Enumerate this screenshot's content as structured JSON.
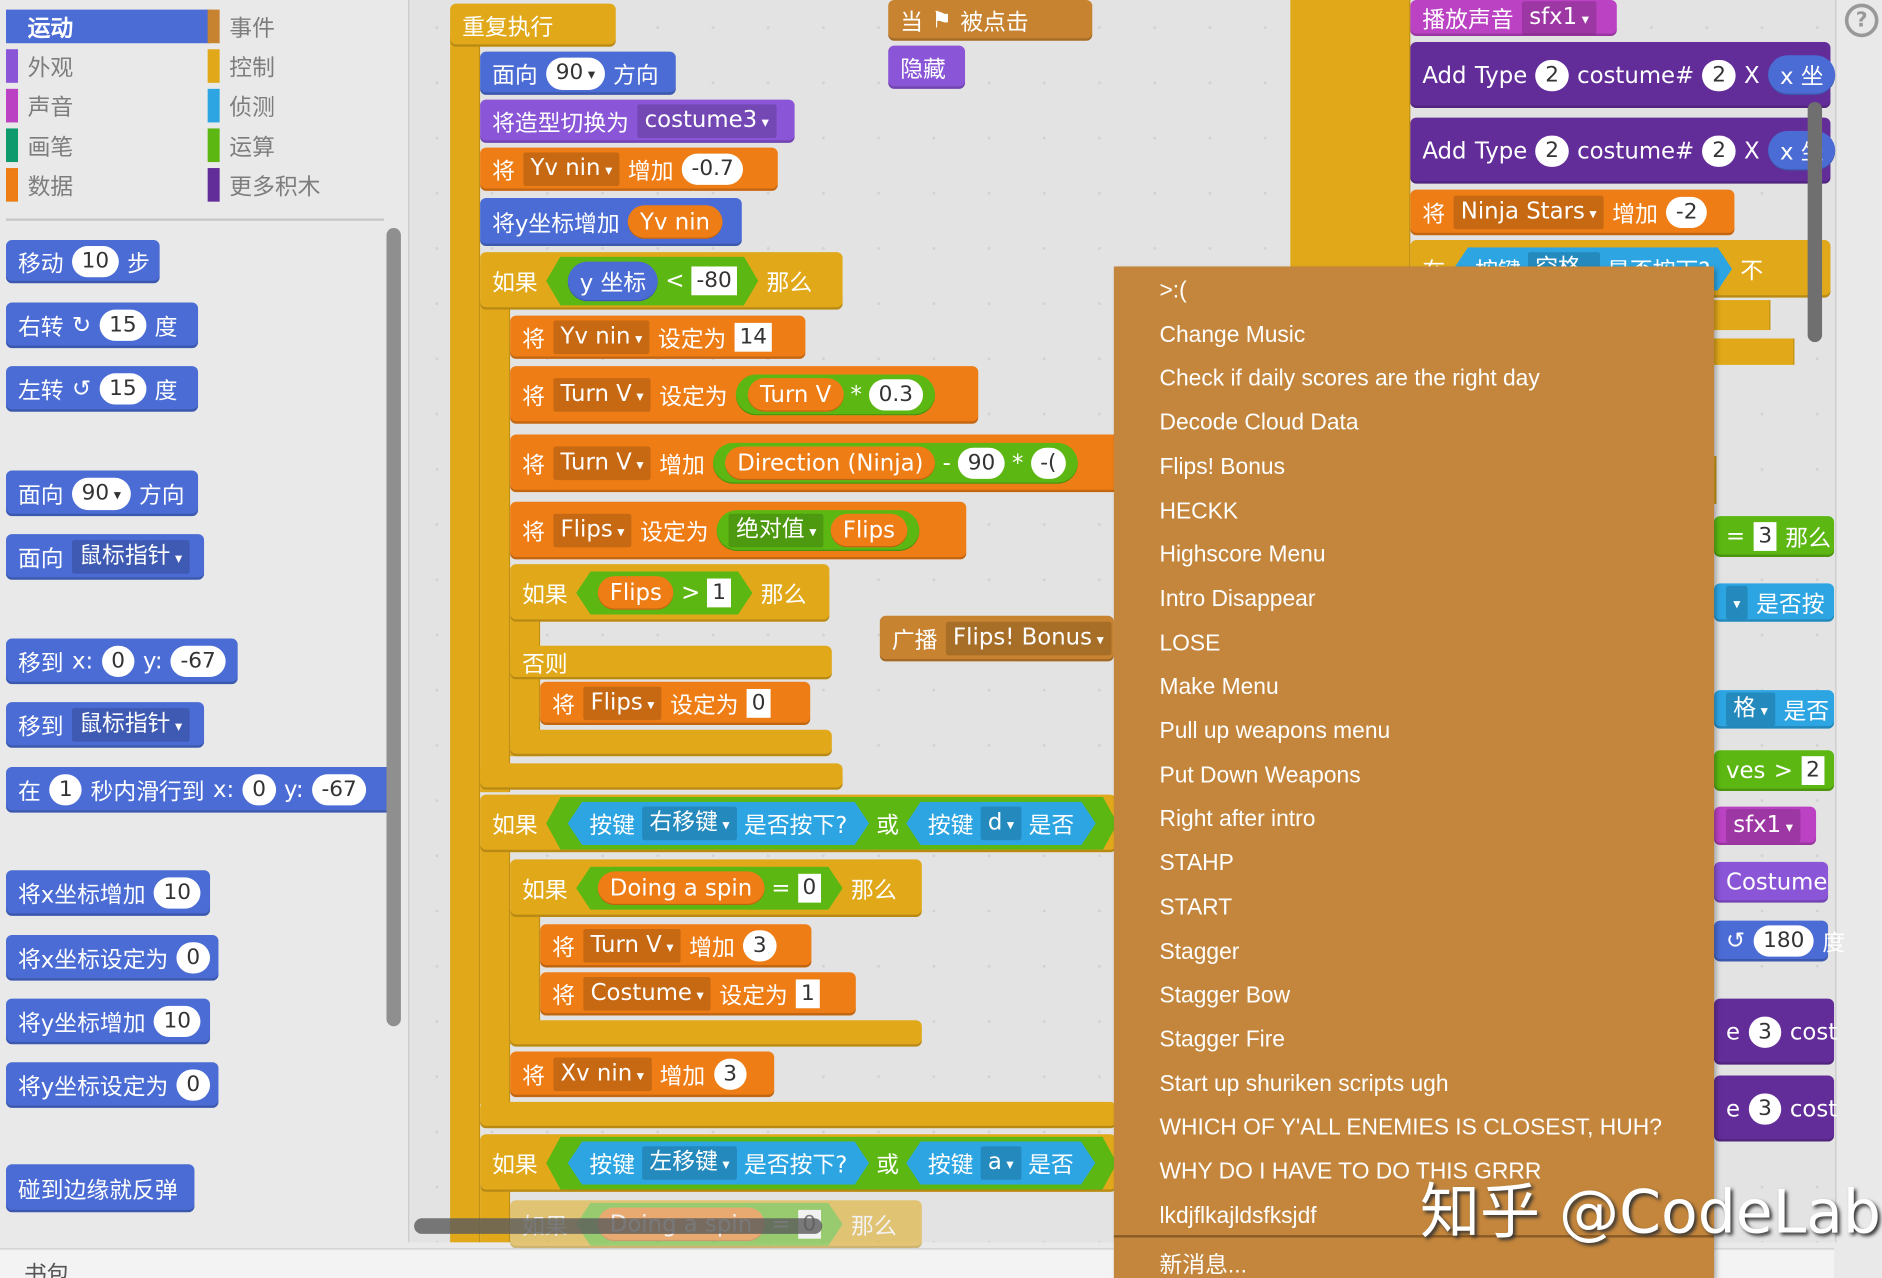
{
  "colors": {
    "motion": "#4a6cd4",
    "looks": "#8a55d7",
    "sound": "#bb42c3",
    "pen": "#0e9a6c",
    "data": "#ee7d16",
    "events": "#c88330",
    "control": "#e1a91a",
    "sensing": "#2ca5e2",
    "operators": "#5cb712",
    "more": "#632d99"
  },
  "categories": [
    {
      "label": "运动",
      "key": "motion",
      "selected": true
    },
    {
      "label": "事件",
      "key": "events"
    },
    {
      "label": "外观",
      "key": "looks"
    },
    {
      "label": "控制",
      "key": "control"
    },
    {
      "label": "声音",
      "key": "sound"
    },
    {
      "label": "侦测",
      "key": "sensing"
    },
    {
      "label": "画笔",
      "key": "pen"
    },
    {
      "label": "运算",
      "key": "operators"
    },
    {
      "label": "数据",
      "key": "data"
    },
    {
      "label": "更多积木",
      "key": "more"
    }
  ],
  "palette_blocks": [
    {
      "c": "motion",
      "p": [
        {
          "t": "移动"
        },
        {
          "n": "10"
        },
        {
          "t": "步"
        }
      ]
    },
    {
      "c": "motion",
      "p": [
        {
          "t": "右转"
        },
        {
          "t": "↻"
        },
        {
          "n": "15"
        },
        {
          "t": "度"
        }
      ]
    },
    {
      "c": "motion",
      "p": [
        {
          "t": "左转"
        },
        {
          "t": "↺"
        },
        {
          "n": "15"
        },
        {
          "t": "度"
        }
      ]
    },
    {
      "c": "motion",
      "p": [
        {
          "t": "面向"
        },
        {
          "n": "90",
          "dd": true
        },
        {
          "t": "方向"
        }
      ]
    },
    {
      "c": "motion",
      "p": [
        {
          "t": "面向"
        },
        {
          "d": "鼠标指针"
        }
      ]
    },
    {
      "c": "motion",
      "p": [
        {
          "t": "移到"
        },
        {
          "t": "x:"
        },
        {
          "n": "0"
        },
        {
          "t": "y:"
        },
        {
          "n": "-67"
        }
      ]
    },
    {
      "c": "motion",
      "p": [
        {
          "t": "移到"
        },
        {
          "d": "鼠标指针"
        }
      ]
    },
    {
      "c": "motion",
      "p": [
        {
          "t": "在"
        },
        {
          "n": "1"
        },
        {
          "t": "秒内滑行到"
        },
        {
          "t": "x:"
        },
        {
          "n": "0"
        },
        {
          "t": "y:"
        },
        {
          "n": "-67"
        }
      ]
    },
    {
      "c": "motion",
      "p": [
        {
          "t": "将x坐标增加"
        },
        {
          "n": "10"
        }
      ]
    },
    {
      "c": "motion",
      "p": [
        {
          "t": "将x坐标设定为"
        },
        {
          "n": "0"
        }
      ]
    },
    {
      "c": "motion",
      "p": [
        {
          "t": "将y坐标增加"
        },
        {
          "n": "10"
        }
      ]
    },
    {
      "c": "motion",
      "p": [
        {
          "t": "将y坐标设定为"
        },
        {
          "n": "0"
        }
      ]
    },
    {
      "c": "motion",
      "p": [
        {
          "t": "碰到边缘就反弹"
        }
      ]
    }
  ],
  "script_blocks": [
    {
      "c": "control",
      "p": [
        {
          "t": "重复执行"
        }
      ]
    },
    {
      "c": "motion",
      "p": [
        {
          "t": "面向"
        },
        {
          "n": "90",
          "dd": true
        },
        {
          "t": "方向"
        }
      ]
    },
    {
      "c": "looks",
      "p": [
        {
          "t": "将造型切换为"
        },
        {
          "d": "costume3"
        }
      ]
    },
    {
      "c": "data",
      "p": [
        {
          "t": "将"
        },
        {
          "d": "Yv nin"
        },
        {
          "t": "增加"
        },
        {
          "n": "-0.7"
        }
      ]
    },
    {
      "c": "motion",
      "p": [
        {
          "t": "将y坐标增加"
        },
        {
          "r": [
            {
              "t": "Yv nin"
            }
          ],
          "c": "data"
        }
      ]
    },
    {
      "c": "control",
      "p": [
        {
          "t": "如果"
        },
        {
          "h": [
            {
              "r": [
                {
                  "t": "y 坐标"
                }
              ],
              "c": "motion"
            },
            {
              "t": "<"
            },
            {
              "s": "-80"
            }
          ],
          "c": "operators"
        },
        {
          "t": "那么"
        }
      ]
    },
    {
      "c": "data",
      "p": [
        {
          "t": "将"
        },
        {
          "d": "Yv nin"
        },
        {
          "t": "设定为"
        },
        {
          "s": "14"
        }
      ]
    },
    {
      "c": "data",
      "p": [
        {
          "t": "将"
        },
        {
          "d": "Turn V"
        },
        {
          "t": "设定为"
        },
        {
          "r": [
            {
              "r": [
                {
                  "t": "Turn V"
                }
              ],
              "c": "data"
            },
            {
              "t": "*"
            },
            {
              "n": "0.3"
            }
          ],
          "c": "operators"
        }
      ]
    },
    {
      "c": "data",
      "p": [
        {
          "t": "将"
        },
        {
          "d": "Turn V"
        },
        {
          "t": "增加"
        },
        {
          "r": [
            {
              "r": [
                {
                  "t": "Direction (Ninja)"
                }
              ],
              "c": "data"
            },
            {
              "t": "-"
            },
            {
              "n": "90"
            },
            {
              "t": "*"
            },
            {
              "n": "-("
            }
          ],
          "c": "operators"
        }
      ]
    },
    {
      "c": "data",
      "p": [
        {
          "t": "将"
        },
        {
          "d": "Flips"
        },
        {
          "t": "设定为"
        },
        {
          "r": [
            {
              "d": "绝对值"
            },
            {
              "r": [
                {
                  "t": "Flips"
                }
              ],
              "c": "data"
            }
          ],
          "c": "operators"
        }
      ]
    },
    {
      "c": "control",
      "p": [
        {
          "t": "如果"
        },
        {
          "h": [
            {
              "r": [
                {
                  "t": "Flips"
                }
              ],
              "c": "data"
            },
            {
              "t": ">"
            },
            {
              "s": "1"
            }
          ],
          "c": "operators"
        },
        {
          "t": "那么"
        }
      ]
    },
    {
      "c": "events",
      "p": [
        {
          "t": "广播"
        },
        {
          "d": "Flips! Bonus"
        }
      ]
    },
    {
      "c": "control",
      "p": [
        {
          "t": "否则"
        }
      ]
    },
    {
      "c": "data",
      "p": [
        {
          "t": "将"
        },
        {
          "d": "Flips"
        },
        {
          "t": "设定为"
        },
        {
          "s": "0"
        }
      ]
    },
    {
      "c": "control",
      "p": []
    },
    {
      "c": "control",
      "p": []
    },
    {
      "c": "control",
      "p": [
        {
          "t": "如果"
        },
        {
          "h": [
            {
              "h": [
                {
                  "t": "按键"
                },
                {
                  "d": "右移键"
                },
                {
                  "t": "是否按下?"
                }
              ],
              "c": "sensing"
            },
            {
              "t": "或"
            },
            {
              "h": [
                {
                  "t": "按键"
                },
                {
                  "d": "d"
                },
                {
                  "t": "是否"
                }
              ],
              "c": "sensing"
            }
          ],
          "c": "operators"
        }
      ]
    },
    {
      "c": "control",
      "p": [
        {
          "t": "如果"
        },
        {
          "h": [
            {
              "r": [
                {
                  "t": "Doing a spin"
                }
              ],
              "c": "data"
            },
            {
              "t": "="
            },
            {
              "s": "0"
            }
          ],
          "c": "operators"
        },
        {
          "t": "那么"
        }
      ]
    },
    {
      "c": "data",
      "p": [
        {
          "t": "将"
        },
        {
          "d": "Turn V"
        },
        {
          "t": "增加"
        },
        {
          "n": "3"
        }
      ]
    },
    {
      "c": "data",
      "p": [
        {
          "t": "将"
        },
        {
          "d": "Costume"
        },
        {
          "t": "设定为"
        },
        {
          "s": "1"
        }
      ]
    },
    {
      "c": "control",
      "p": []
    },
    {
      "c": "data",
      "p": [
        {
          "t": "将"
        },
        {
          "d": "Xv nin"
        },
        {
          "t": "增加"
        },
        {
          "n": "3"
        }
      ]
    },
    {
      "c": "control",
      "p": []
    },
    {
      "c": "control",
      "p": [
        {
          "t": "如果"
        },
        {
          "h": [
            {
              "h": [
                {
                  "t": "按键"
                },
                {
                  "d": "左移键"
                },
                {
                  "t": "是否按下?"
                }
              ],
              "c": "sensing"
            },
            {
              "t": "或"
            },
            {
              "h": [
                {
                  "t": "按键"
                },
                {
                  "d": "a"
                },
                {
                  "t": "是否"
                }
              ],
              "c": "sensing"
            }
          ],
          "c": "operators"
        }
      ]
    },
    {
      "c": "control",
      "p": [
        {
          "t": "如果"
        },
        {
          "h": [
            {
              "r": [
                {
                  "t": "Doing a spin"
                }
              ],
              "c": "data"
            },
            {
              "t": "="
            },
            {
              "s": "0"
            }
          ],
          "c": "operators"
        },
        {
          "t": "那么"
        }
      ]
    },
    {
      "c": "events",
      "p": [
        {
          "t": "当"
        },
        {
          "t": "⚑"
        },
        {
          "t": "被点击"
        }
      ]
    },
    {
      "c": "looks",
      "p": [
        {
          "t": "隐藏"
        }
      ]
    },
    {
      "c": "sound",
      "p": [
        {
          "t": "播放声音"
        },
        {
          "d": "sfx1"
        }
      ]
    },
    {
      "c": "more",
      "p": [
        {
          "t": "Add"
        },
        {
          "t": "Type"
        },
        {
          "n": "2"
        },
        {
          "t": "costume#"
        },
        {
          "n": "2"
        },
        {
          "t": "X"
        },
        {
          "r": [
            {
              "t": "x 坐"
            }
          ],
          "c": "motion"
        }
      ]
    },
    {
      "c": "more",
      "p": [
        {
          "t": "Add"
        },
        {
          "t": "Type"
        },
        {
          "n": "2"
        },
        {
          "t": "costume#"
        },
        {
          "n": "2"
        },
        {
          "t": "X"
        },
        {
          "r": [
            {
              "t": "x 坐"
            }
          ],
          "c": "motion"
        }
      ]
    },
    {
      "c": "data",
      "p": [
        {
          "t": "将"
        },
        {
          "d": "Ninja Stars"
        },
        {
          "t": "增加"
        },
        {
          "n": "-2"
        }
      ]
    },
    {
      "c": "control",
      "p": [
        {
          "t": "在"
        },
        {
          "h": [
            {
              "t": "按键"
            },
            {
              "d": "空格"
            },
            {
              "t": "是否按下?"
            }
          ],
          "c": "sensing"
        },
        {
          "t": "不"
        }
      ]
    },
    {
      "c": "operators",
      "p": [
        {
          "t": "="
        },
        {
          "s": "3"
        },
        {
          "t": "那么"
        }
      ]
    },
    {
      "c": "sensing",
      "p": [
        {
          "d": ""
        },
        {
          "t": "是否按"
        }
      ]
    },
    {
      "c": "sensing",
      "p": [
        {
          "d": "格"
        },
        {
          "t": "是否"
        }
      ]
    },
    {
      "c": "operators",
      "p": [
        {
          "t": "ves"
        },
        {
          "t": ">"
        },
        {
          "s": "2"
        }
      ]
    },
    {
      "c": "sound",
      "p": [
        {
          "d": "sfx1"
        }
      ]
    },
    {
      "c": "looks",
      "p": [
        {
          "t": "Costume"
        }
      ]
    },
    {
      "c": "motion",
      "p": [
        {
          "t": "↺"
        },
        {
          "n": "180"
        },
        {
          "t": "度"
        }
      ]
    },
    {
      "c": "more",
      "p": [
        {
          "t": "e"
        },
        {
          "n": "3"
        },
        {
          "t": "cost"
        }
      ]
    },
    {
      "c": "more",
      "p": [
        {
          "t": "e"
        },
        {
          "n": "3"
        },
        {
          "t": "cost"
        }
      ]
    }
  ],
  "dropdown_menu": {
    "items": [
      ">:(",
      "Change Music",
      "Check if daily scores are the right day",
      "Decode Cloud Data",
      "Flips! Bonus",
      "HECKK",
      "Highscore Menu",
      "Intro Disappear",
      "LOSE",
      "Make Menu",
      "Pull up weapons menu",
      "Put Down Weapons",
      "Right after intro",
      "STAHP",
      "START",
      "Stagger",
      "Stagger Bow",
      "Stagger Fire",
      "Start up shuriken scripts ugh",
      "WHICH OF Y'ALL ENEMIES IS CLOSEST, HUH?",
      "WHY DO I HAVE TO DO THIS GRRR",
      "lkdjflkajldsfksjdf"
    ],
    "new_message": "新消息..."
  },
  "help_icon": "?",
  "backpack_label": "书包",
  "watermark": "知乎 @CodeLab"
}
